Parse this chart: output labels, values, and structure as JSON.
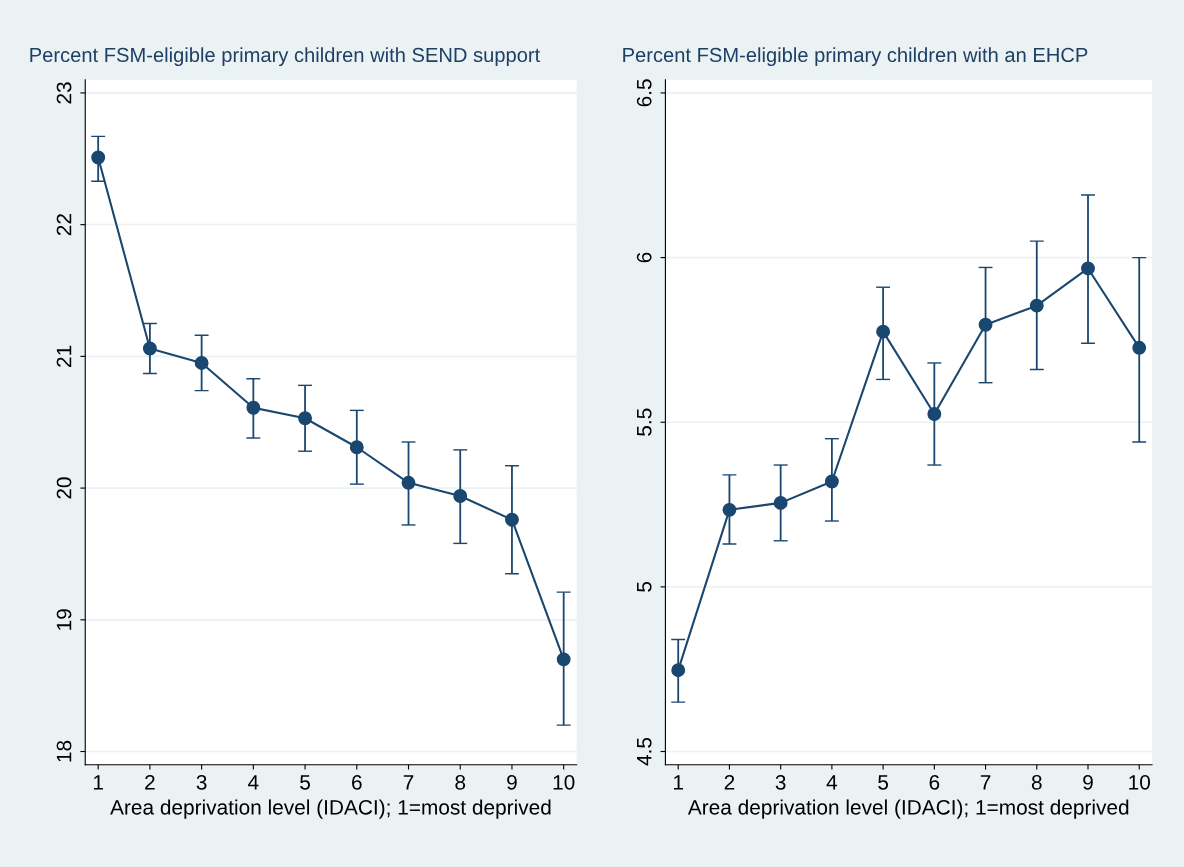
{
  "chart_data": [
    {
      "type": "line",
      "title": "Percent FSM-eligible primary children with SEND support",
      "xlabel": "Area deprivation level (IDACI); 1=most deprived",
      "x": [
        1,
        2,
        3,
        4,
        5,
        6,
        7,
        8,
        9,
        10
      ],
      "series": [
        {
          "color": "#1a476f",
          "values": [
            22.51,
            21.06,
            20.95,
            20.61,
            20.53,
            20.31,
            20.04,
            19.94,
            19.76,
            18.7
          ],
          "errors": [
            [
              22.33,
              22.67
            ],
            [
              20.87,
              21.25
            ],
            [
              20.74,
              21.16
            ],
            [
              20.38,
              20.83
            ],
            [
              20.28,
              20.78
            ],
            [
              20.03,
              20.59
            ],
            [
              19.72,
              20.35
            ],
            [
              19.58,
              20.29
            ],
            [
              19.35,
              20.17
            ],
            [
              18.2,
              19.21
            ]
          ]
        }
      ],
      "xlim": [
        0.75,
        10.25
      ],
      "xticks": [
        1,
        2,
        3,
        4,
        5,
        6,
        7,
        8,
        9,
        10
      ],
      "ylim": [
        17.9,
        23.1
      ],
      "yticks": [
        18,
        19,
        20,
        21,
        22,
        23
      ],
      "grid": "y",
      "marker": "circle",
      "line_style": "solid",
      "legend": false
    },
    {
      "type": "line",
      "title": "Percent FSM-eligible primary children with an EHCP",
      "xlabel": "Area deprivation level (IDACI); 1=most deprived",
      "x": [
        1,
        2,
        3,
        4,
        5,
        6,
        7,
        8,
        9,
        10
      ],
      "series": [
        {
          "color": "#1a476f",
          "values": [
            4.747,
            5.234,
            5.255,
            5.32,
            5.775,
            5.525,
            5.796,
            5.854,
            5.967,
            5.726
          ],
          "errors": [
            [
              4.65,
              4.84
            ],
            [
              5.13,
              5.34
            ],
            [
              5.14,
              5.37
            ],
            [
              5.2,
              5.45
            ],
            [
              5.63,
              5.91
            ],
            [
              5.37,
              5.68
            ],
            [
              5.62,
              5.97
            ],
            [
              5.66,
              6.05
            ],
            [
              5.74,
              6.19
            ],
            [
              5.44,
              6.0
            ]
          ]
        }
      ],
      "xlim": [
        0.75,
        10.25
      ],
      "xticks": [
        1,
        2,
        3,
        4,
        5,
        6,
        7,
        8,
        9,
        10
      ],
      "ylim": [
        4.46,
        6.54
      ],
      "yticks": [
        4.5,
        5,
        5.5,
        6,
        6.5
      ],
      "grid": "y",
      "marker": "circle",
      "line_style": "solid",
      "legend": false
    }
  ]
}
